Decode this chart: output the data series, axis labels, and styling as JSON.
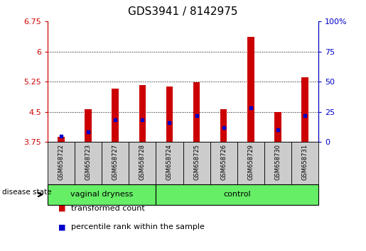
{
  "title": "GDS3941 / 8142975",
  "samples": [
    "GSM658722",
    "GSM658723",
    "GSM658727",
    "GSM658728",
    "GSM658724",
    "GSM658725",
    "GSM658726",
    "GSM658729",
    "GSM658730",
    "GSM658731"
  ],
  "transformed_count": [
    3.87,
    4.57,
    5.07,
    5.17,
    5.12,
    5.23,
    4.57,
    6.37,
    4.5,
    5.35
  ],
  "percentile_rank": [
    5,
    8,
    18,
    18,
    16,
    22,
    12,
    28,
    10,
    22
  ],
  "ylim_left": [
    3.75,
    6.75
  ],
  "ylim_right": [
    0,
    100
  ],
  "yticks_left": [
    3.75,
    4.5,
    5.25,
    6.0,
    6.75
  ],
  "yticks_right": [
    0,
    25,
    50,
    75,
    100
  ],
  "ytick_labels_left": [
    "3.75",
    "4.5",
    "5.25",
    "6",
    "6.75"
  ],
  "ytick_labels_right": [
    "0",
    "25",
    "50",
    "75",
    "100%"
  ],
  "bar_color": "#cc0000",
  "marker_color": "#0000cc",
  "bar_bottom": 3.75,
  "bar_width": 0.25,
  "groups": [
    {
      "label": "vaginal dryness",
      "indices": [
        0,
        1,
        2,
        3
      ]
    },
    {
      "label": "control",
      "indices": [
        4,
        5,
        6,
        7,
        8,
        9
      ]
    }
  ],
  "group_box_color": "#66ee66",
  "sample_box_color": "#cccccc",
  "disease_state_label": "disease state",
  "legend_items": [
    {
      "label": "transformed count",
      "color": "#cc0000"
    },
    {
      "label": "percentile rank within the sample",
      "color": "#0000cc"
    }
  ],
  "grid_color": "black",
  "title_fontsize": 11,
  "tick_fontsize": 8,
  "sample_fontsize": 6,
  "group_fontsize": 8,
  "legend_fontsize": 8
}
